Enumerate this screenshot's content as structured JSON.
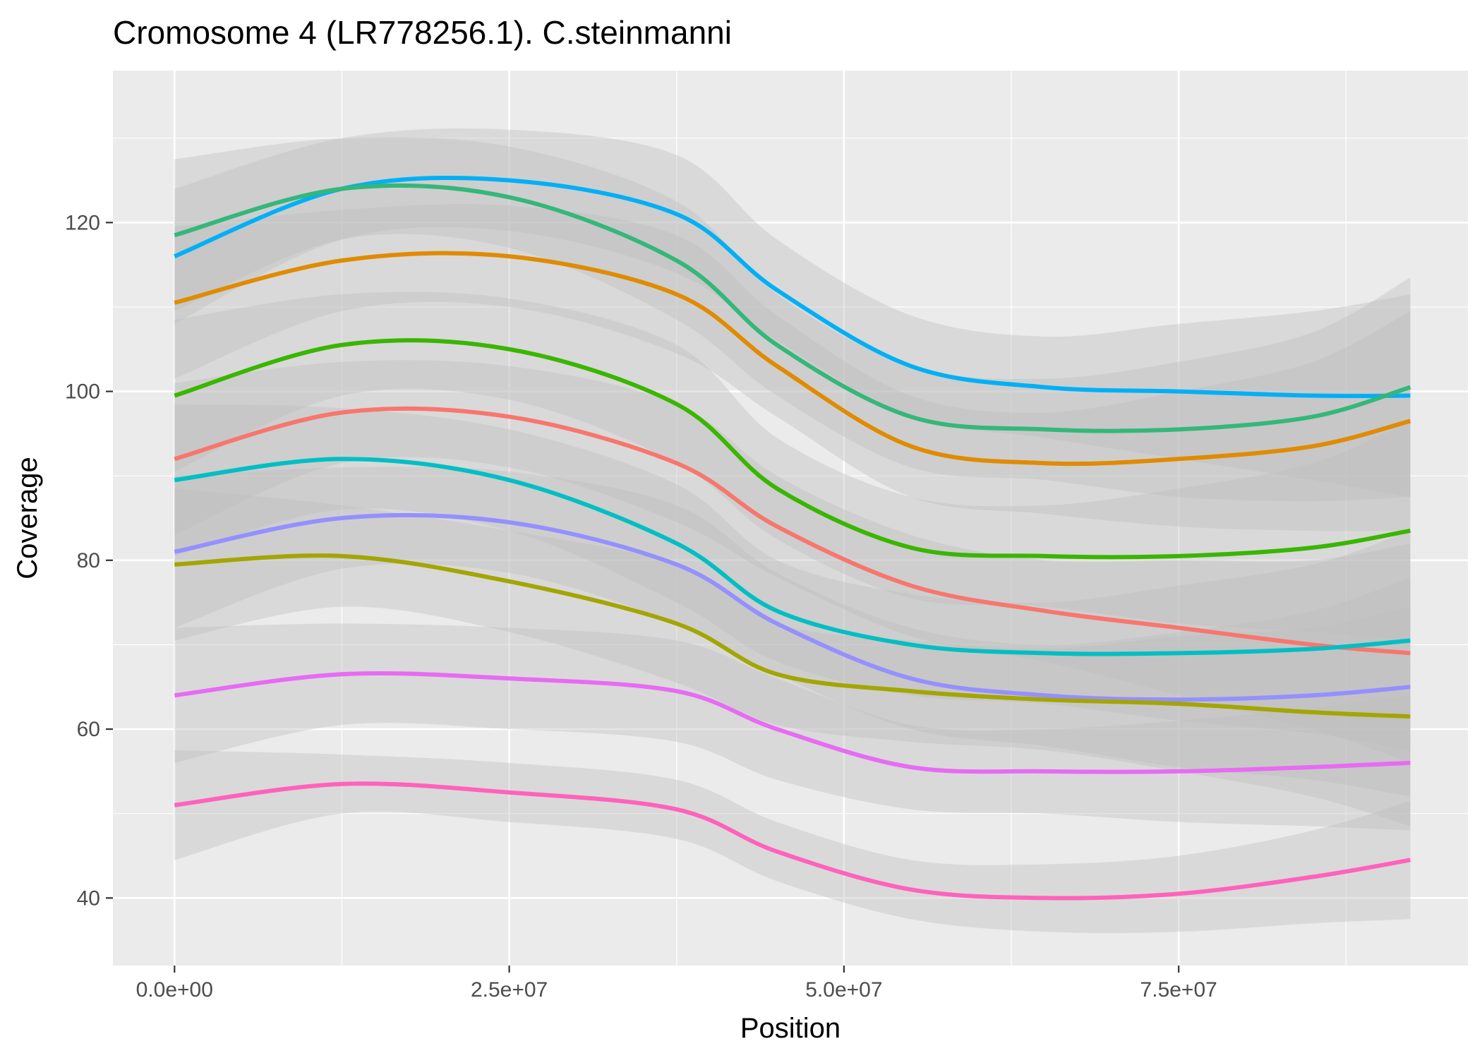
{
  "chart_data": {
    "type": "line",
    "title": "Cromosome 4 (LR778256.1). C.steinmanni",
    "xlabel": "Position",
    "ylabel": "Coverage",
    "xlim": [
      -4600000,
      96600000
    ],
    "ylim": [
      32000,
      138000
    ],
    "x_ticks": [
      {
        "value": 0,
        "label": "0.0e+00"
      },
      {
        "value": 25000000,
        "label": "2.5e+07"
      },
      {
        "value": 50000000,
        "label": "5.0e+07"
      },
      {
        "value": 75000000,
        "label": "7.5e+07"
      }
    ],
    "y_ticks": [
      {
        "value": 40,
        "label": "40"
      },
      {
        "value": 60,
        "label": "60"
      },
      {
        "value": 80,
        "label": "80"
      },
      {
        "value": 100,
        "label": "100"
      },
      {
        "value": 120,
        "label": "120"
      }
    ],
    "y_range": [
      32,
      138
    ],
    "x_range": [
      -4600000,
      96600000
    ],
    "grid": true,
    "legend": "none",
    "background": "#ebebeb",
    "band_color": "#bfbfbf",
    "x": [
      0,
      12500000,
      25000000,
      37500000,
      45000000,
      55000000,
      65000000,
      75000000,
      85000000,
      92300000
    ],
    "series": [
      {
        "color": "#00b0f6",
        "values": [
          116,
          124,
          125,
          121,
          112,
          103,
          100.5,
          100,
          99.5,
          99.5
        ],
        "band": [
          8,
          6,
          6,
          7,
          6,
          6,
          6,
          8,
          10,
          12
        ]
      },
      {
        "color": "#35b779",
        "values": [
          118.5,
          124,
          123,
          115.5,
          105.5,
          97,
          95.5,
          95.5,
          97,
          100.5
        ],
        "band": [
          9,
          6,
          6,
          7,
          6,
          6,
          6,
          8,
          10,
          13
        ]
      },
      {
        "color": "#e08b00",
        "values": [
          110.5,
          115.5,
          116,
          111.5,
          103,
          93.5,
          91.5,
          92,
          93.5,
          96.5
        ],
        "band": [
          9,
          6,
          6,
          7,
          6,
          6,
          6,
          8,
          10,
          13
        ]
      },
      {
        "color": "#39b600",
        "values": [
          99.5,
          105.5,
          105,
          98.5,
          88.5,
          81.5,
          80.5,
          80.5,
          81.5,
          83.5
        ],
        "band": [
          9,
          6,
          6,
          7,
          6,
          6,
          6,
          8,
          10,
          13
        ]
      },
      {
        "color": "#f8766d",
        "values": [
          92,
          97.5,
          97,
          91.5,
          84,
          77,
          74,
          72,
          70,
          69
        ],
        "band": [
          9,
          6,
          6,
          7,
          6,
          6,
          6,
          8,
          10,
          13
        ]
      },
      {
        "color": "#00bfc4",
        "values": [
          89.5,
          92,
          89.5,
          82,
          74,
          70,
          69,
          69,
          69.5,
          70.5
        ],
        "band": [
          9,
          6,
          6,
          7,
          6,
          6,
          6,
          8,
          10,
          13
        ]
      },
      {
        "color": "#9590ff",
        "values": [
          81,
          85,
          84.5,
          79.5,
          72.5,
          66,
          64,
          63.5,
          64,
          65
        ],
        "band": [
          9,
          6,
          6,
          7,
          6,
          6,
          6,
          8,
          10,
          13
        ]
      },
      {
        "color": "#a3a500",
        "values": [
          79.5,
          80.5,
          77.5,
          72.5,
          66.5,
          64.5,
          63.5,
          63,
          62,
          61.5
        ],
        "band": [
          9,
          6,
          6,
          7,
          6,
          6,
          6,
          8,
          10,
          13
        ]
      },
      {
        "color": "#e76bf3",
        "values": [
          64,
          66.5,
          66,
          64.5,
          60,
          55.5,
          55,
          55,
          55.5,
          56
        ],
        "band": [
          8,
          6,
          6,
          6,
          6,
          5,
          5,
          6,
          7,
          8
        ]
      },
      {
        "color": "#ff62bc",
        "values": [
          51,
          53.5,
          52.5,
          50.5,
          45.5,
          41,
          40,
          40.5,
          42.5,
          44.5
        ],
        "band": [
          6.5,
          3.5,
          3.5,
          3.5,
          3.5,
          3.5,
          4,
          4.5,
          5.5,
          7
        ]
      }
    ]
  }
}
